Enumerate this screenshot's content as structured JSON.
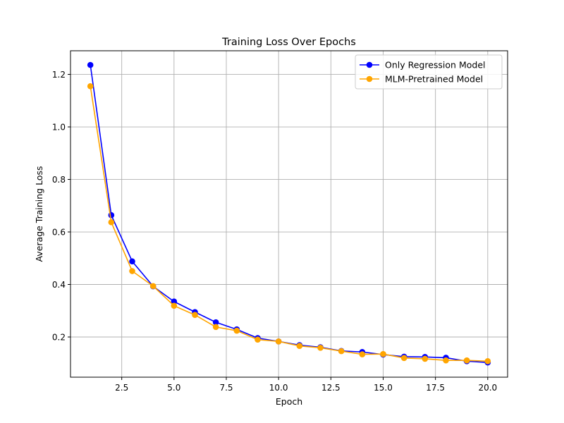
{
  "chart_data": {
    "type": "line",
    "title": "Training Loss Over Epochs",
    "xlabel": "Epoch",
    "ylabel": "Average Training Loss",
    "xlim": [
      0.05,
      20.95
    ],
    "ylim": [
      0.047,
      1.29
    ],
    "xticks": [
      2.5,
      5.0,
      7.5,
      10.0,
      12.5,
      15.0,
      17.5,
      20.0
    ],
    "xtick_labels": [
      "2.5",
      "5.0",
      "7.5",
      "10.0",
      "12.5",
      "15.0",
      "17.5",
      "20.0"
    ],
    "yticks": [
      0.2,
      0.4,
      0.6,
      0.8,
      1.0,
      1.2
    ],
    "ytick_labels": [
      "0.2",
      "0.4",
      "0.6",
      "0.8",
      "1.0",
      "1.2"
    ],
    "grid": true,
    "legend_position": "top-right",
    "x": [
      1,
      2,
      3,
      4,
      5,
      6,
      7,
      8,
      9,
      10,
      11,
      12,
      13,
      14,
      15,
      16,
      17,
      18,
      19,
      20
    ],
    "series": [
      {
        "name": "Only Regression Model",
        "color": "#0000ff",
        "marker": "circle",
        "values": [
          1.236,
          0.664,
          0.488,
          0.393,
          0.335,
          0.295,
          0.256,
          0.229,
          0.196,
          0.183,
          0.169,
          0.161,
          0.147,
          0.143,
          0.133,
          0.125,
          0.124,
          0.121,
          0.108,
          0.103
        ]
      },
      {
        "name": "MLM-Pretrained Model",
        "color": "#ffa500",
        "marker": "circle",
        "values": [
          1.155,
          0.637,
          0.451,
          0.394,
          0.319,
          0.284,
          0.238,
          0.224,
          0.19,
          0.183,
          0.166,
          0.159,
          0.146,
          0.134,
          0.135,
          0.12,
          0.117,
          0.111,
          0.111,
          0.108
        ]
      }
    ]
  }
}
